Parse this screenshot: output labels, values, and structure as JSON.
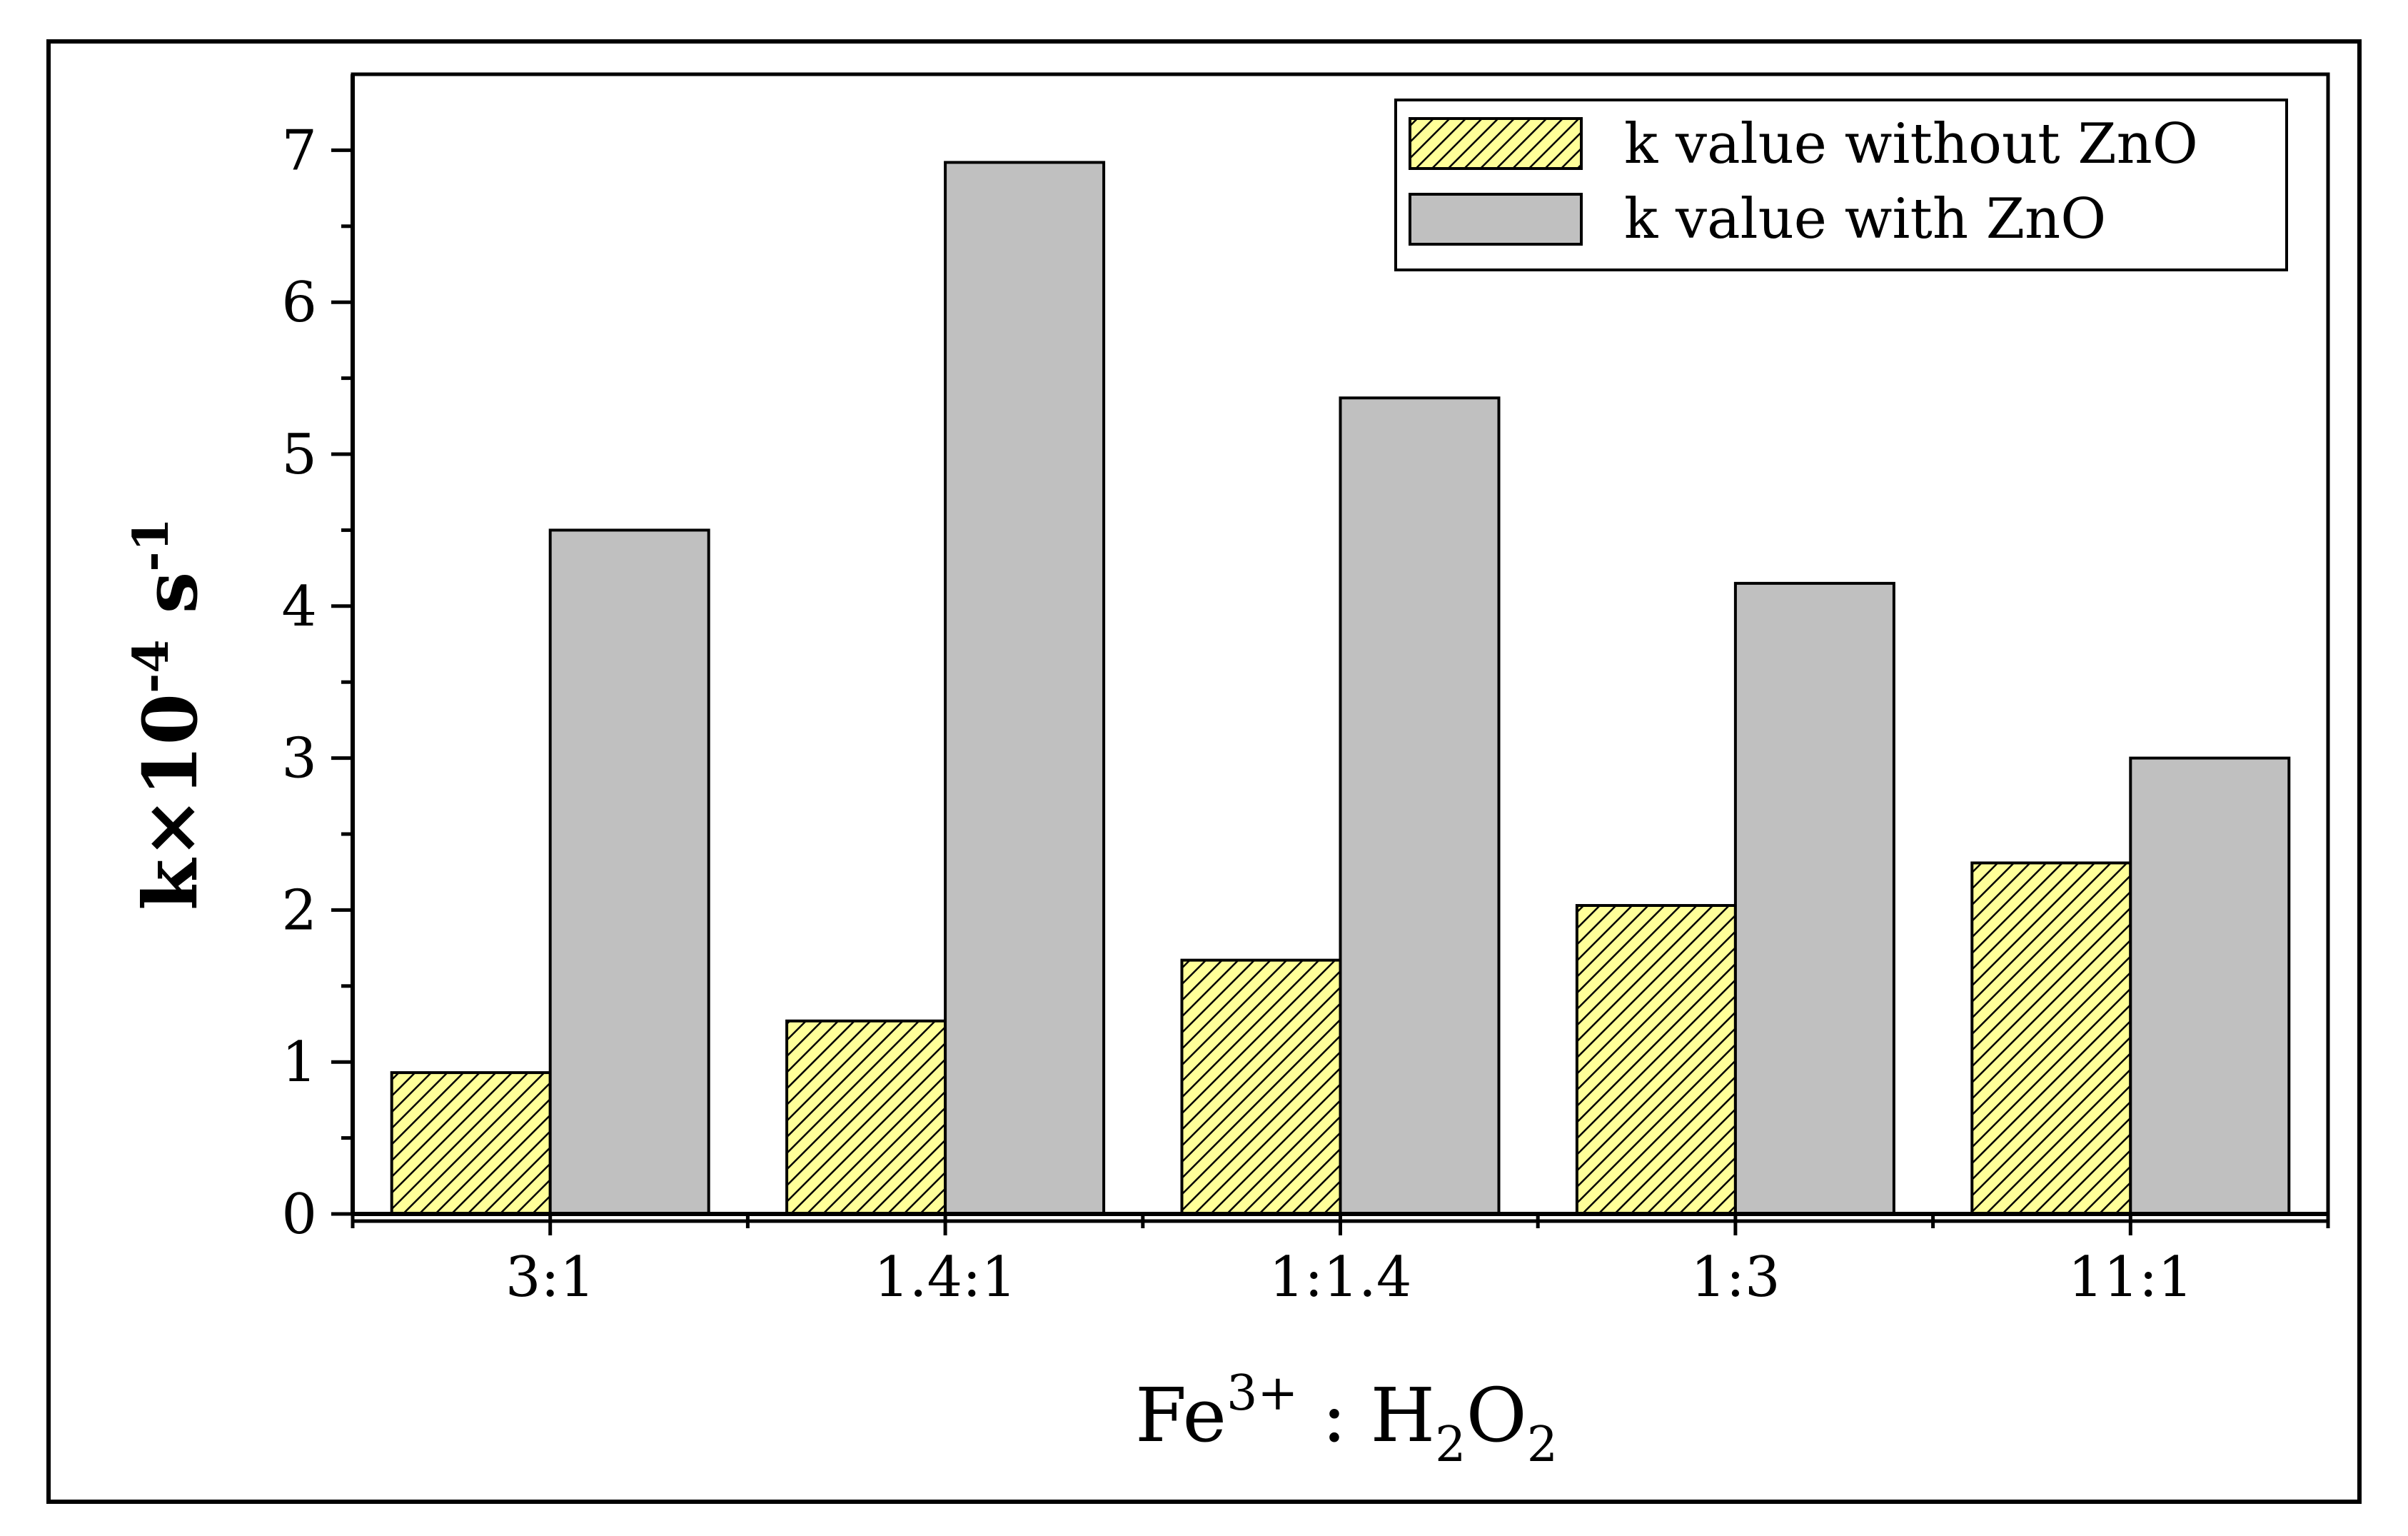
{
  "chart_data": {
    "type": "bar",
    "categories": [
      "3:1",
      "1.4:1",
      "1:1.4",
      "1:3",
      "11:1"
    ],
    "series": [
      {
        "name": "k value without ZnO",
        "values": [
          0.93,
          1.27,
          1.67,
          2.03,
          2.31
        ],
        "color": "#ffff99",
        "pattern": "diagonal-hatch"
      },
      {
        "name": "k value with ZnO",
        "values": [
          4.5,
          6.92,
          5.37,
          4.15,
          3.0
        ],
        "color": "#c0c0c0",
        "pattern": "solid"
      }
    ],
    "xlabel": {
      "base": "Fe",
      "sup": "3+",
      "mid": " : H",
      "sub1": "2",
      "o": "O",
      "sub2": "2"
    },
    "ylabel": {
      "main": "k×10",
      "sup": "-4",
      "unit": " s",
      "unit_sup": "-1"
    },
    "ylim": [
      0,
      7.5
    ],
    "yticks": [
      0,
      1,
      2,
      3,
      4,
      5,
      6,
      7
    ],
    "legend_position": "top-right",
    "grid": false
  }
}
